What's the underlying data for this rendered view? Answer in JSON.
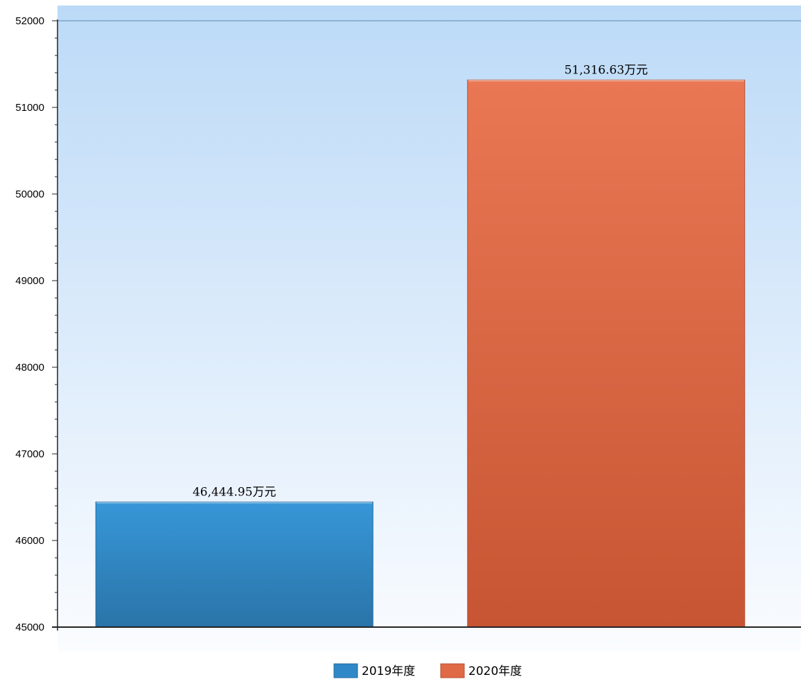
{
  "chart_data": {
    "type": "bar",
    "categories": [
      "2019年度",
      "2020年度"
    ],
    "values": [
      46444.95,
      51316.63
    ],
    "data_labels": [
      "46,444.95万元",
      "51,316.63万元"
    ],
    "colors": [
      "#2f88c8",
      "#e06a45"
    ],
    "ylim": [
      45000,
      52000
    ],
    "yticks": [
      "45000",
      "46000",
      "47000",
      "48000",
      "49000",
      "50000",
      "51000",
      "52000"
    ],
    "title": "",
    "xlabel": "",
    "ylabel": "",
    "grid": false,
    "legend": {
      "position": "bottom-center",
      "entries": [
        "2019年度",
        "2020年度"
      ]
    }
  }
}
